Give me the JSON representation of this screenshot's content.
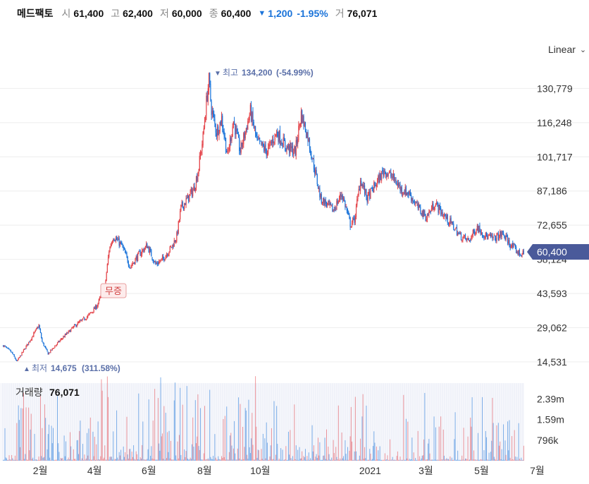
{
  "header": {
    "name": "메드팩토",
    "open_label": "시",
    "open": "61,400",
    "high_label": "고",
    "high": "62,400",
    "low_label": "저",
    "low": "60,000",
    "close_label": "종",
    "close": "60,400",
    "change": "1,200",
    "change_pct": "-1.95%",
    "volume_label": "거",
    "volume": "76,071"
  },
  "scale_select": {
    "value": "Linear"
  },
  "volume_panel": {
    "label": "거래량",
    "value": "76,071"
  },
  "colors": {
    "up": "#e4464c",
    "down": "#1a73d9",
    "price_tag": "#4a5a9a",
    "annotation": "#5a6fa8"
  },
  "chart_data": [
    {
      "type": "candlestick",
      "title": "",
      "y_ticks": [
        130779,
        116248,
        101717,
        87186,
        72655,
        58124,
        43593,
        29062,
        14531
      ],
      "y_tick_labels": [
        "130,779",
        "116,248",
        "101,717",
        "87,186",
        "72,655",
        "58,124",
        "43,593",
        "29,062",
        "14,531"
      ],
      "ylim": [
        10000,
        142000
      ],
      "x_ticks": [
        "2월",
        "4월",
        "6월",
        "8월",
        "10월",
        "2021",
        "3월",
        "5월",
        "7월"
      ],
      "grid": true,
      "current_price": 60400,
      "current_price_label": "60,400",
      "annotations": {
        "high": {
          "label": "최고",
          "value": "134,200",
          "pct": "(-54.99%)"
        },
        "low": {
          "label": "최저",
          "value": "14,675",
          "pct": "(311.58%)"
        },
        "event": {
          "label": "무증"
        }
      },
      "series": [
        {
          "key_points": [
            [
              0,
              21500
            ],
            [
              10,
              18500
            ],
            [
              16,
              14675
            ],
            [
              32,
              24000
            ],
            [
              42,
              30000
            ],
            [
              46,
              23000
            ],
            [
              53,
              18000
            ],
            [
              68,
              24000
            ],
            [
              85,
              30000
            ],
            [
              100,
              34000
            ],
            [
              110,
              38000
            ],
            [
              120,
              46000
            ],
            [
              125,
              62000
            ],
            [
              130,
              68000
            ],
            [
              140,
              64000
            ],
            [
              150,
              55000
            ],
            [
              160,
              60000
            ],
            [
              170,
              64000
            ],
            [
              180,
              56000
            ],
            [
              188,
              58000
            ],
            [
              200,
              64000
            ],
            [
              205,
              68000
            ],
            [
              210,
              80000
            ],
            [
              218,
              84000
            ],
            [
              225,
              88000
            ],
            [
              230,
              95000
            ],
            [
              236,
              110000
            ],
            [
              240,
              125000
            ],
            [
              243,
              134200
            ],
            [
              246,
              122000
            ],
            [
              252,
              112000
            ],
            [
              258,
              118000
            ],
            [
              265,
              102000
            ],
            [
              272,
              117000
            ],
            [
              280,
              104000
            ],
            [
              292,
              121000
            ],
            [
              300,
              108000
            ],
            [
              312,
              104000
            ],
            [
              323,
              112000
            ],
            [
              334,
              106000
            ],
            [
              345,
              104000
            ],
            [
              352,
              120000
            ],
            [
              360,
              110000
            ],
            [
              367,
              98000
            ],
            [
              375,
              84000
            ],
            [
              390,
              79000
            ],
            [
              400,
              86000
            ],
            [
              405,
              80000
            ],
            [
              410,
              73000
            ],
            [
              415,
              75000
            ],
            [
              422,
              92000
            ],
            [
              430,
              84000
            ],
            [
              440,
              90000
            ],
            [
              450,
              96000
            ],
            [
              460,
              93000
            ],
            [
              470,
              88000
            ],
            [
              480,
              86000
            ],
            [
              490,
              80000
            ],
            [
              500,
              76000
            ],
            [
              510,
              82000
            ],
            [
              520,
              77000
            ],
            [
              530,
              73000
            ],
            [
              540,
              68000
            ],
            [
              550,
              66000
            ],
            [
              560,
              72000
            ],
            [
              570,
              68000
            ],
            [
              580,
              67000
            ],
            [
              590,
              69000
            ],
            [
              600,
              64000
            ],
            [
              610,
              60500
            ],
            [
              615,
              60400
            ]
          ]
        }
      ]
    },
    {
      "type": "bar",
      "title": "거래량",
      "y_ticks": [
        796000,
        1590000,
        2390000
      ],
      "y_tick_labels": [
        "796k",
        "1.59m",
        "2.39m"
      ],
      "ylim": [
        0,
        3000000
      ]
    }
  ]
}
